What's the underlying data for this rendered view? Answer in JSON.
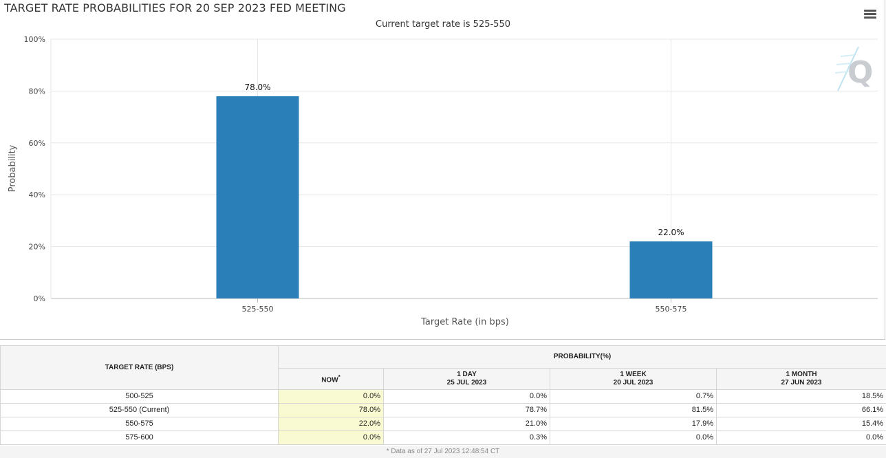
{
  "menu_icon": "hamburger-menu-icon",
  "logo_icon": "q-logo-icon",
  "chart_data": {
    "type": "bar",
    "title": "TARGET RATE PROBABILITIES FOR 20 SEP 2023 FED MEETING",
    "subtitle": "Current target rate is 525-550",
    "categories": [
      "525-550",
      "550-575"
    ],
    "values": [
      78.0,
      22.0
    ],
    "data_labels": [
      "78.0%",
      "22.0%"
    ],
    "xlabel": "Target Rate (in bps)",
    "ylabel": "Probability",
    "ylim": [
      0,
      100
    ],
    "yticks": [
      "0%",
      "20%",
      "40%",
      "60%",
      "80%",
      "100%"
    ],
    "grid": true,
    "bar_color": "#2a7fb8"
  },
  "table": {
    "header_rate": "TARGET RATE (BPS)",
    "header_prob": "PROBABILITY(%)",
    "col_now": "NOW",
    "col_now_mark": "*",
    "col_day": "1 DAY",
    "col_day_date": "25 JUL 2023",
    "col_week": "1 WEEK",
    "col_week_date": "20 JUL 2023",
    "col_month": "1 MONTH",
    "col_month_date": "27 JUN 2023",
    "rows": [
      {
        "rate": "500-525",
        "now": "0.0%",
        "day": "0.0%",
        "week": "0.7%",
        "month": "18.5%"
      },
      {
        "rate": "525-550 (Current)",
        "now": "78.0%",
        "day": "78.7%",
        "week": "81.5%",
        "month": "66.1%"
      },
      {
        "rate": "550-575",
        "now": "22.0%",
        "day": "21.0%",
        "week": "17.9%",
        "month": "15.4%"
      },
      {
        "rate": "575-600",
        "now": "0.0%",
        "day": "0.3%",
        "week": "0.0%",
        "month": "0.0%"
      }
    ]
  },
  "footnote": "* Data as of 27 Jul 2023 12:48:54 CT"
}
